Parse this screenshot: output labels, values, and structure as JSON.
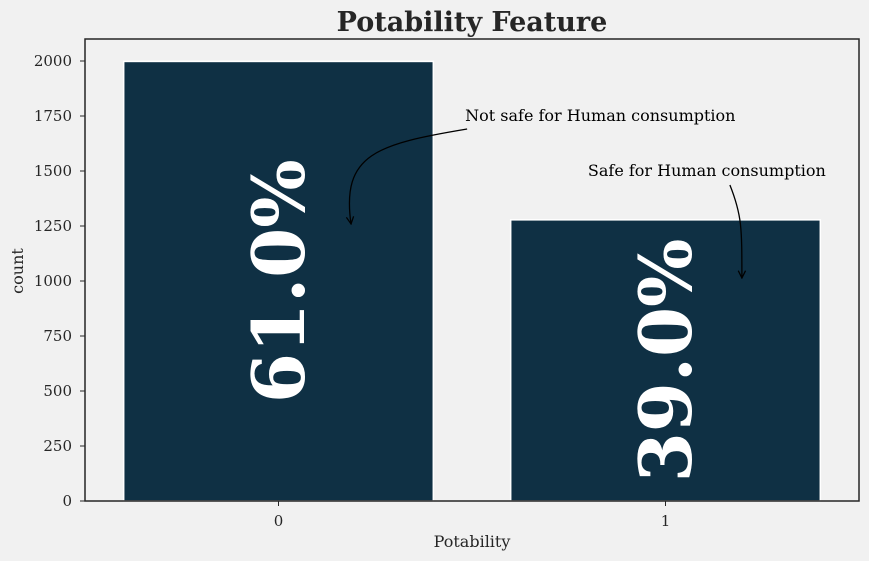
{
  "chart_data": {
    "type": "bar",
    "title": "Potability Feature",
    "xlabel": "Potability",
    "ylabel": "count",
    "categories": [
      "0",
      "1"
    ],
    "values": [
      1998,
      1278
    ],
    "bar_labels": [
      "61.0%",
      "39.0%"
    ],
    "yticks": [
      0,
      250,
      500,
      750,
      1000,
      1250,
      1500,
      1750,
      2000
    ],
    "ylim": [
      0,
      2100
    ],
    "grid": false,
    "colors": {
      "bar": "#0f3044",
      "background": "#f1f1f1",
      "label": "#ffffff"
    },
    "annotations": [
      {
        "text": "Not safe for Human consumption",
        "text_xy": [
          0.49,
          1750
        ],
        "arrow_xy": [
          0.19,
          1250
        ]
      },
      {
        "text": "Safe for Human consumption",
        "text_xy": [
          1.2,
          1500
        ],
        "arrow_xy": [
          1.2,
          1000
        ]
      }
    ]
  }
}
